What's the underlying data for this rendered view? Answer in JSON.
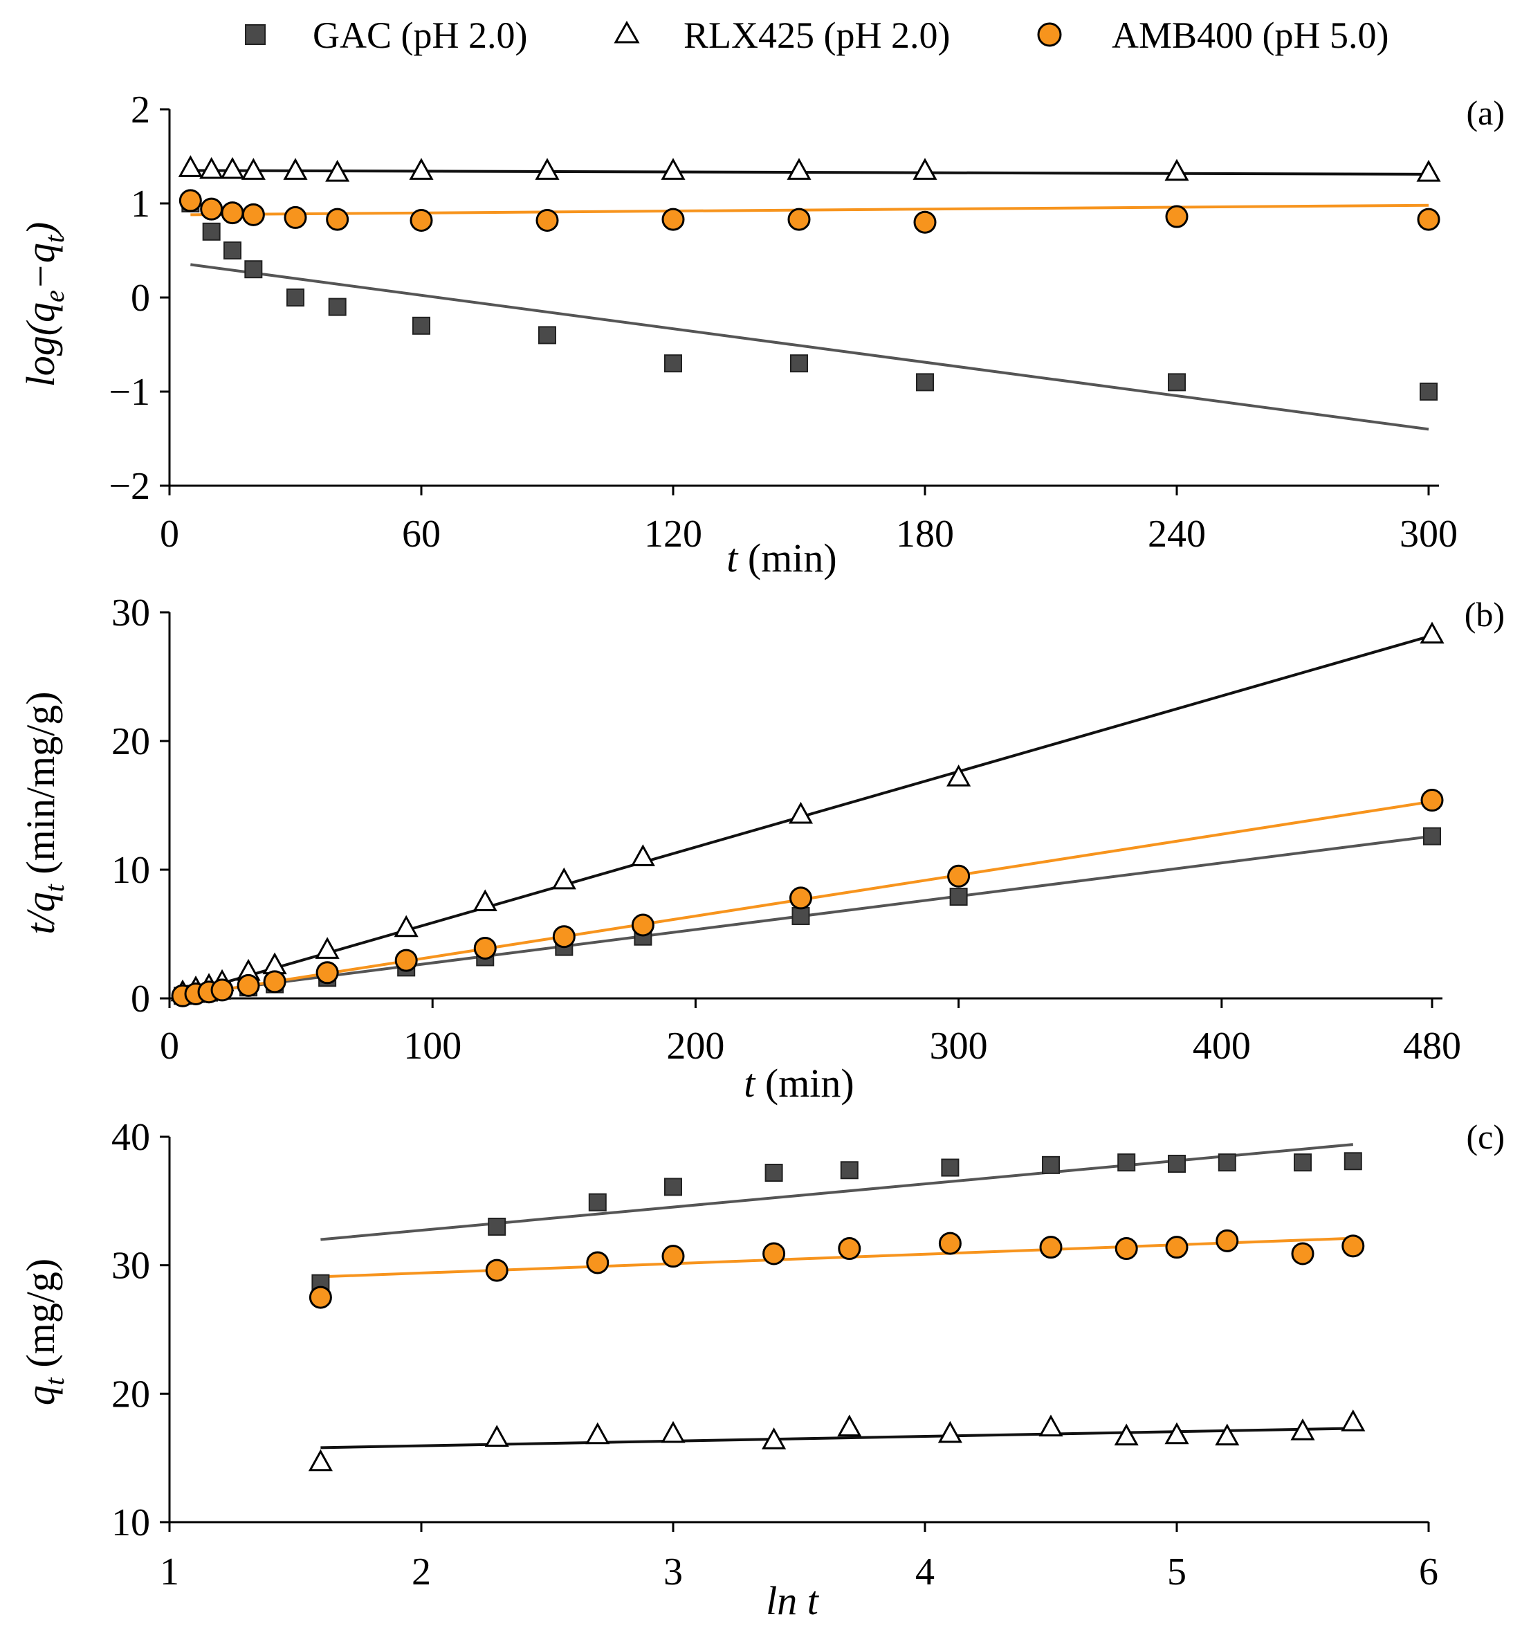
{
  "legend": [
    {
      "label": "GAC (pH 2.0)",
      "marker": "square",
      "color": "#4a4a4a"
    },
    {
      "label": "RLX425 (pH 2.0)",
      "marker": "triangle",
      "color": "#ffffff"
    },
    {
      "label": "AMB400 (pH 5.0)",
      "marker": "circle",
      "color": "#f7941d"
    }
  ],
  "colors": {
    "GAC_marker": "#4a4a4a",
    "GAC_line": "#555555",
    "RLX425_line": "#111111",
    "AMB400_fill": "#f7941d",
    "AMB400_line": "#f7941d"
  },
  "chart_data": [
    {
      "type": "scatter",
      "panel_label": "(a)",
      "xlabel": "t (min)",
      "ylabel": "log(q_e − q_t)",
      "xlim": [
        0,
        300
      ],
      "ylim": [
        -2,
        2
      ],
      "xticks": [
        "0",
        "60",
        "120",
        "180",
        "240",
        "300"
      ],
      "yticks": [
        "−2",
        "−1",
        "0",
        "1",
        "2"
      ],
      "series": [
        {
          "name": "GAC (pH 2.0)",
          "x": [
            5,
            10,
            15,
            20,
            30,
            40,
            60,
            90,
            120,
            150,
            180,
            240,
            300
          ],
          "y": [
            1.0,
            0.7,
            0.5,
            0.3,
            0.0,
            -0.1,
            -0.3,
            -0.4,
            -0.7,
            -0.7,
            -0.9,
            -0.9,
            -1.0
          ],
          "fit": [
            [
              5,
              0.35
            ],
            [
              300,
              -1.4
            ]
          ]
        },
        {
          "name": "RLX425 (pH 2.0)",
          "x": [
            5,
            10,
            15,
            20,
            30,
            40,
            60,
            90,
            120,
            150,
            180,
            240,
            300
          ],
          "y": [
            1.38,
            1.36,
            1.36,
            1.35,
            1.35,
            1.33,
            1.35,
            1.35,
            1.35,
            1.35,
            1.35,
            1.34,
            1.33
          ],
          "fit": [
            [
              5,
              1.35
            ],
            [
              300,
              1.31
            ]
          ]
        },
        {
          "name": "AMB400 (pH 5.0)",
          "x": [
            5,
            10,
            15,
            20,
            30,
            40,
            60,
            90,
            120,
            150,
            180,
            240,
            300
          ],
          "y": [
            1.03,
            0.94,
            0.9,
            0.88,
            0.85,
            0.83,
            0.82,
            0.82,
            0.83,
            0.83,
            0.8,
            0.86,
            0.83
          ],
          "fit": [
            [
              5,
              0.88
            ],
            [
              300,
              0.98
            ]
          ]
        }
      ]
    },
    {
      "type": "scatter",
      "panel_label": "(b)",
      "xlabel": "t (min)",
      "ylabel": "t/q_t (min/mg/g)",
      "xlim": [
        0,
        480
      ],
      "ylim": [
        0,
        30
      ],
      "xticks": [
        {
          "v": 0,
          "label": "0"
        },
        {
          "v": 100,
          "label": "100"
        },
        {
          "v": 200,
          "label": "200"
        },
        {
          "v": 300,
          "label": "300"
        },
        {
          "v": 400,
          "label": "400"
        },
        {
          "v": 480,
          "label": "480"
        }
      ],
      "yticks": [
        "0",
        "10",
        "20",
        "30"
      ],
      "series": [
        {
          "name": "GAC (pH 2.0)",
          "x": [
            5,
            10,
            15,
            20,
            30,
            40,
            60,
            90,
            120,
            150,
            180,
            240,
            300,
            480
          ],
          "y": [
            0.2,
            0.35,
            0.45,
            0.6,
            0.85,
            1.1,
            1.6,
            2.4,
            3.2,
            4.0,
            4.8,
            6.4,
            7.9,
            12.6
          ],
          "fit": [
            [
              5,
              0.3
            ],
            [
              480,
              12.6
            ]
          ]
        },
        {
          "name": "RLX425 (pH 2.0)",
          "x": [
            5,
            10,
            15,
            20,
            30,
            40,
            60,
            90,
            120,
            150,
            180,
            240,
            300,
            480
          ],
          "y": [
            0.5,
            0.8,
            1.0,
            1.3,
            2.1,
            2.6,
            3.8,
            5.5,
            7.5,
            9.2,
            11.0,
            14.3,
            17.2,
            28.3
          ],
          "fit": [
            [
              5,
              0.3
            ],
            [
              480,
              28.2
            ]
          ]
        },
        {
          "name": "AMB400 (pH 5.0)",
          "x": [
            5,
            10,
            15,
            20,
            30,
            40,
            60,
            90,
            120,
            150,
            180,
            240,
            300,
            480
          ],
          "y": [
            0.2,
            0.35,
            0.5,
            0.65,
            1.0,
            1.3,
            2.0,
            2.95,
            3.9,
            4.8,
            5.7,
            7.8,
            9.5,
            15.4
          ],
          "fit": [
            [
              5,
              0.2
            ],
            [
              480,
              15.3
            ]
          ]
        }
      ]
    },
    {
      "type": "scatter",
      "panel_label": "(c)",
      "xlabel": "ln t",
      "ylabel": "q_t (mg/g)",
      "xlim": [
        1,
        6
      ],
      "ylim": [
        10,
        40
      ],
      "xticks": [
        "1",
        "2",
        "3",
        "4",
        "5",
        "6"
      ],
      "yticks": [
        "10",
        "20",
        "30",
        "40"
      ],
      "series": [
        {
          "name": "GAC (pH 2.0)",
          "x": [
            1.6,
            2.3,
            2.7,
            3.0,
            3.4,
            3.7,
            4.1,
            4.5,
            4.8,
            5.0,
            5.2,
            5.5,
            5.7
          ],
          "y": [
            28.6,
            33.0,
            34.9,
            36.1,
            37.2,
            37.4,
            37.6,
            37.8,
            38.0,
            37.9,
            38.0,
            38.0,
            38.1
          ],
          "fit": [
            [
              1.6,
              32.0
            ],
            [
              5.7,
              39.4
            ]
          ]
        },
        {
          "name": "RLX425 (pH 2.0)",
          "x": [
            1.6,
            2.3,
            2.7,
            3.0,
            3.4,
            3.7,
            4.1,
            4.5,
            4.8,
            5.0,
            5.2,
            5.5,
            5.7
          ],
          "y": [
            14.7,
            16.6,
            16.8,
            16.9,
            16.4,
            17.4,
            16.9,
            17.4,
            16.7,
            16.8,
            16.7,
            17.1,
            17.8
          ],
          "fit": [
            [
              1.6,
              15.8
            ],
            [
              5.7,
              17.3
            ]
          ]
        },
        {
          "name": "AMB400 (pH 5.0)",
          "x": [
            1.6,
            2.3,
            2.7,
            3.0,
            3.4,
            3.7,
            4.1,
            4.5,
            4.8,
            5.0,
            5.2,
            5.5,
            5.7
          ],
          "y": [
            27.5,
            29.6,
            30.2,
            30.7,
            30.9,
            31.3,
            31.7,
            31.4,
            31.3,
            31.4,
            31.9,
            30.9,
            31.5
          ],
          "fit": [
            [
              1.6,
              29.1
            ],
            [
              5.7,
              32.1
            ]
          ]
        }
      ]
    }
  ]
}
